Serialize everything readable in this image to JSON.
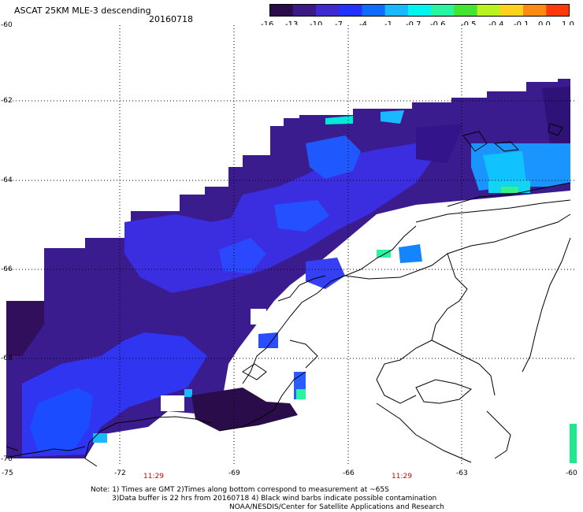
{
  "header": {
    "title": "ASCAT 25KM MLE-3 descending",
    "date": "20160718"
  },
  "colorbar": {
    "labels": [
      "-16",
      "-13",
      "-10",
      "-7",
      "-4",
      "-1",
      "-0.7",
      "-0.6",
      "-0.5",
      "-0.4",
      "-0.1",
      "0.0",
      "1.0"
    ],
    "colors": [
      "#2b0c4a",
      "#3a1a85",
      "#3d2ad0",
      "#2233ff",
      "#0f6cff",
      "#19b9ff",
      "#00f5f0",
      "#29f5a0",
      "#43e52e",
      "#b9f21d",
      "#ffd11a",
      "#ff8a12",
      "#ff3a0b"
    ]
  },
  "latitude_labels": [
    "-60",
    "-62",
    "-64",
    "-66",
    "-68",
    "-70"
  ],
  "longitude_labels": [
    "-75",
    "-72",
    "-69",
    "-66",
    "-63",
    "-60"
  ],
  "pass_times": [
    "11:29",
    "11:29"
  ],
  "notes": [
    "Note: 1) Times are GMT 2)Times along bottom correspond to measurement at ~65S",
    "3)Data buffer is 22 hrs from 20160718 4) Black wind barbs indicate possible contamination",
    "NOAA/NESDIS/Center for Satellite Applications and Research"
  ]
}
